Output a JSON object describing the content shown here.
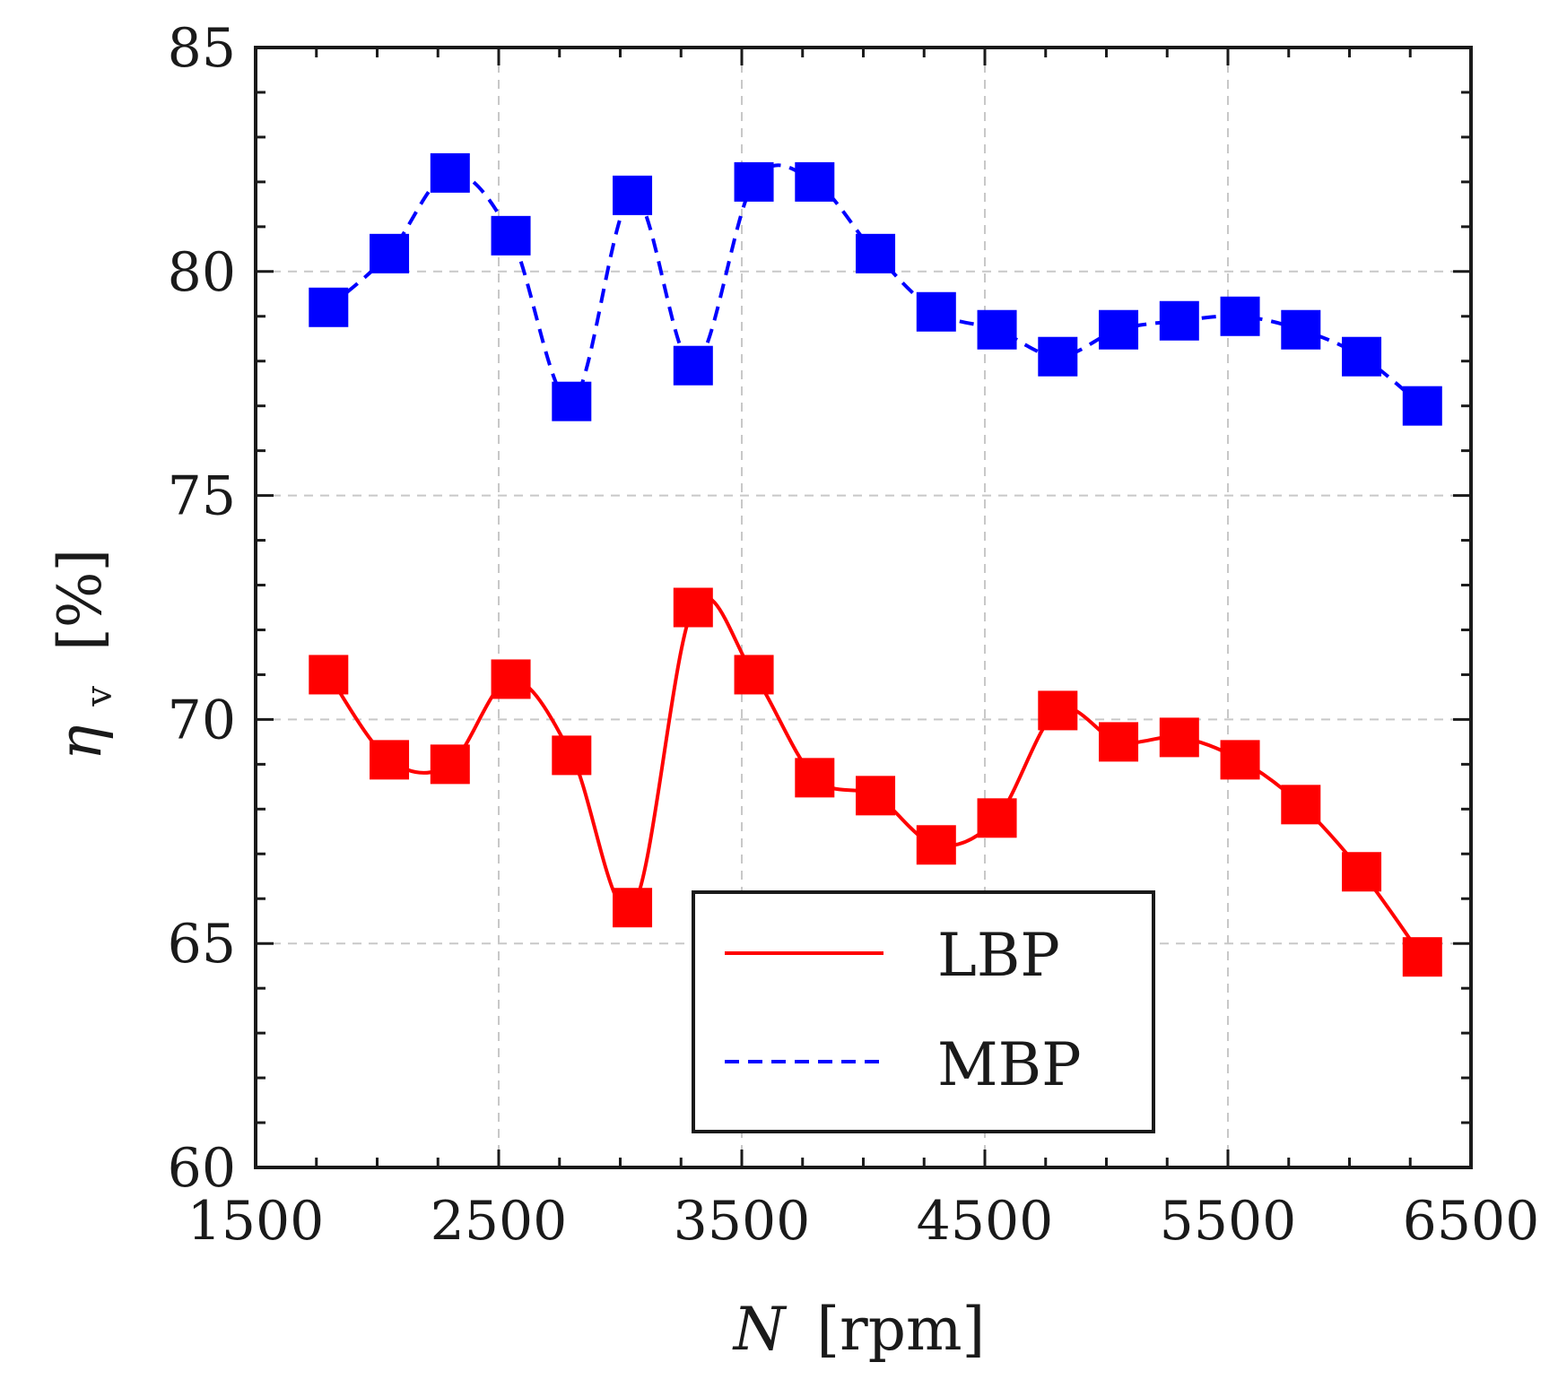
{
  "chart_data": {
    "type": "line",
    "x_label_var": "N",
    "x_label_unit": "[rpm]",
    "y_label_var": "η",
    "y_label_sub": "v",
    "y_label_unit": "[%]",
    "xlim": [
      1500,
      6500
    ],
    "ylim": [
      60,
      85
    ],
    "xticks": [
      1500,
      2500,
      3500,
      4500,
      5500,
      6500
    ],
    "yticks": [
      60,
      65,
      70,
      75,
      80,
      85
    ],
    "grid": true,
    "legend_position": "bottom-center",
    "x": [
      1800,
      2050,
      2300,
      2550,
      2800,
      3050,
      3300,
      3550,
      3800,
      4050,
      4300,
      4550,
      4800,
      5050,
      5300,
      5550,
      5800,
      6050,
      6300
    ],
    "series": [
      {
        "name": "LBP",
        "color": "#ff0000",
        "line_style": "solid",
        "marker": "square",
        "values": [
          71.0,
          69.1,
          69.0,
          70.9,
          69.2,
          65.8,
          72.5,
          71.0,
          68.7,
          68.3,
          67.2,
          67.8,
          70.2,
          69.5,
          69.6,
          69.1,
          68.1,
          66.6,
          64.7
        ]
      },
      {
        "name": "MBP",
        "color": "#0000ff",
        "line_style": "dashed",
        "marker": "square",
        "values": [
          79.2,
          80.4,
          82.2,
          80.8,
          77.1,
          81.7,
          77.9,
          82.0,
          82.0,
          80.4,
          79.1,
          78.7,
          78.1,
          78.7,
          78.9,
          79.0,
          78.7,
          78.1,
          77.0
        ]
      }
    ]
  }
}
